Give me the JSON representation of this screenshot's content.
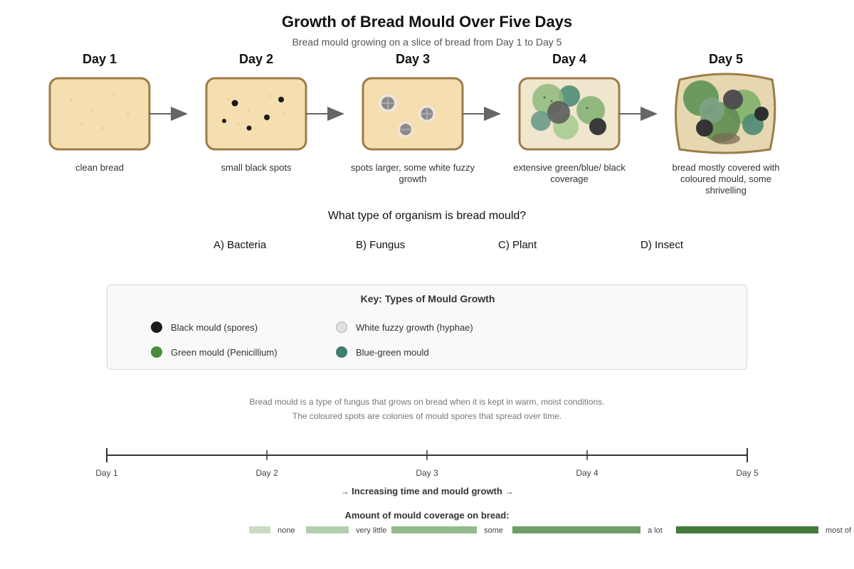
{
  "title": "Growth of Bread Mould Over Five Days",
  "subtitle": "Bread mould growing on a slice of bread from Day 1 to Day 5",
  "days": [
    {
      "label": "Day 1",
      "caption": "clean bread"
    },
    {
      "label": "Day 2",
      "caption": "small black spots"
    },
    {
      "label": "Day 3",
      "caption": "spots larger, some white fuzzy growth"
    },
    {
      "label": "Day 4",
      "caption": "extensive green/blue/ black coverage"
    },
    {
      "label": "Day 5",
      "caption": "bread mostly covered with coloured mould, some shrivelling"
    }
  ],
  "question": "What type of organism is bread mould?",
  "options": [
    "A) Bacteria",
    "B) Fungus",
    "C) Plant",
    "D) Insect"
  ],
  "key": {
    "title": "Key: Types of Mould Growth",
    "items": [
      {
        "label": "Black mould (spores)",
        "color": "#1a1a1a"
      },
      {
        "label": "White fuzzy growth (hyphae)",
        "color": "#e0e0e0"
      },
      {
        "label": "Green mould (Penicillium)",
        "color": "#4a8a3c"
      },
      {
        "label": "Blue-green mould",
        "color": "#3e7d70"
      }
    ]
  },
  "notes": [
    "Bread mould is a type of fungus that grows on bread when it is kept in warm, moist conditions.",
    "The coloured spots are colonies of mould spores that spread over time."
  ],
  "timeline": {
    "labels": [
      "Day 1",
      "Day 2",
      "Day 3",
      "Day 4",
      "Day 5"
    ],
    "arrow_text": "Increasing time and mould growth"
  },
  "coverage": {
    "title": "Amount of mould coverage on bread:",
    "levels": [
      {
        "label": "none",
        "color": "#c8dcc4"
      },
      {
        "label": "very little",
        "color": "#b2cfad"
      },
      {
        "label": "some",
        "color": "#93bb8c"
      },
      {
        "label": "a lot",
        "color": "#6d9e63"
      },
      {
        "label": "most of bread",
        "color": "#437a3c"
      }
    ]
  },
  "colors": {
    "bread_fill": "#f5deb0",
    "crust": "#9c7c48",
    "arrow": "#666666"
  }
}
